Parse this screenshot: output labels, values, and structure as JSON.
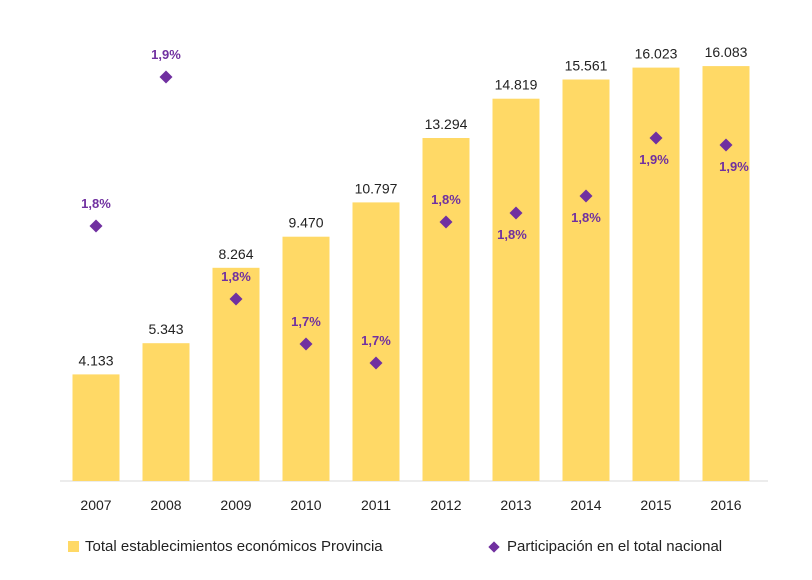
{
  "chart_data": {
    "type": "bar",
    "categories": [
      "2007",
      "2008",
      "2009",
      "2010",
      "2011",
      "2012",
      "2013",
      "2014",
      "2015",
      "2016"
    ],
    "series": [
      {
        "name": "Total establecimientos económicos Provincia",
        "type": "bar",
        "color": "#FFD966",
        "values": [
          4133,
          5343,
          8264,
          9470,
          10797,
          13294,
          14819,
          15561,
          16023,
          16083
        ],
        "labels": [
          "4.133",
          "5.343",
          "8.264",
          "9.470",
          "10.797",
          "13.294",
          "14.819",
          "15.561",
          "16.023",
          "16.083"
        ]
      },
      {
        "name": "Participación en el total nacional",
        "type": "scatter",
        "marker": "diamond",
        "color": "#7030A0",
        "values": [
          1.8,
          1.9,
          1.8,
          1.7,
          1.7,
          1.8,
          1.8,
          1.8,
          1.9,
          1.9
        ],
        "labels": [
          "1,8%",
          "1,9%",
          "1,8%",
          "1,7%",
          "1,7%",
          "1,8%",
          "1,8%",
          "1,8%",
          "1,9%",
          "1,9%"
        ]
      }
    ],
    "ylim": [
      0,
      18000
    ],
    "legend_position": "bottom",
    "grid": false
  }
}
